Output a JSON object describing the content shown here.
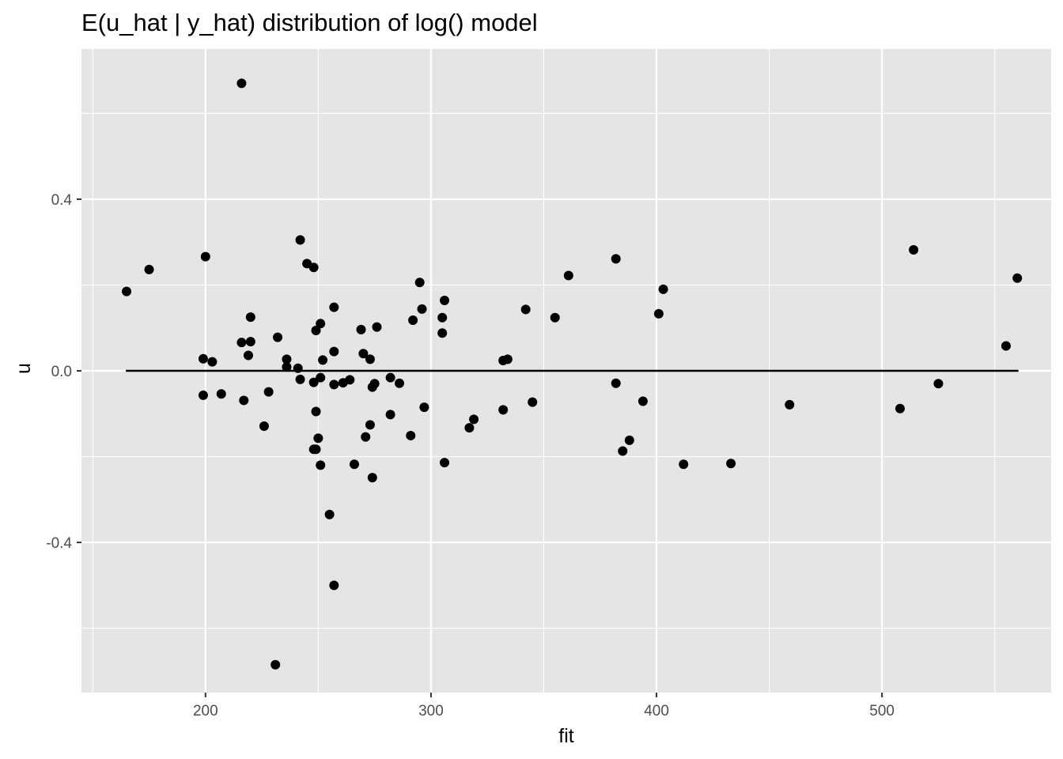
{
  "chart_data": {
    "type": "scatter",
    "title": "E(u_hat | y_hat) distribution of log() model",
    "xlabel": "fit",
    "ylabel": "u",
    "xlim": [
      145,
      575
    ],
    "ylim": [
      -0.75,
      0.75
    ],
    "x_ticks": [
      200,
      300,
      400,
      500
    ],
    "x_minor_ticks": [
      150,
      250,
      350,
      450,
      550
    ],
    "y_ticks": [
      -0.4,
      0.0,
      0.4
    ],
    "y_tick_labels": [
      "-0.4",
      "0.0",
      "0.4"
    ],
    "y_minor_ticks": [
      -0.6,
      -0.2,
      0.2,
      0.6
    ],
    "grid": true,
    "background": "#e5e5e5",
    "grid_color": "#ffffff",
    "point_color": "#000000",
    "reference_line": {
      "type": "hline",
      "y": 0.0,
      "x_from": 164.7,
      "x_to": 560.5,
      "color": "#000000"
    },
    "points": [
      {
        "x": 216,
        "y": 0.67
      },
      {
        "x": 231,
        "y": -0.685
      },
      {
        "x": 257,
        "y": -0.5
      },
      {
        "x": 255,
        "y": -0.335
      },
      {
        "x": 242,
        "y": 0.305
      },
      {
        "x": 245,
        "y": 0.25
      },
      {
        "x": 248,
        "y": 0.241
      },
      {
        "x": 200,
        "y": 0.266
      },
      {
        "x": 175,
        "y": 0.236
      },
      {
        "x": 165,
        "y": 0.185
      },
      {
        "x": 220,
        "y": 0.125
      },
      {
        "x": 216,
        "y": 0.066
      },
      {
        "x": 220,
        "y": 0.068
      },
      {
        "x": 219,
        "y": 0.036
      },
      {
        "x": 199,
        "y": 0.028
      },
      {
        "x": 203,
        "y": 0.021
      },
      {
        "x": 199,
        "y": -0.057
      },
      {
        "x": 207,
        "y": -0.054
      },
      {
        "x": 217,
        "y": -0.069
      },
      {
        "x": 226,
        "y": -0.129
      },
      {
        "x": 228,
        "y": -0.049
      },
      {
        "x": 232,
        "y": 0.078
      },
      {
        "x": 236,
        "y": 0.027
      },
      {
        "x": 236,
        "y": 0.009
      },
      {
        "x": 241,
        "y": 0.006
      },
      {
        "x": 242,
        "y": -0.02
      },
      {
        "x": 249,
        "y": 0.094
      },
      {
        "x": 251,
        "y": 0.11
      },
      {
        "x": 257,
        "y": 0.148
      },
      {
        "x": 252,
        "y": 0.025
      },
      {
        "x": 257,
        "y": 0.045
      },
      {
        "x": 248,
        "y": -0.027
      },
      {
        "x": 251,
        "y": -0.016
      },
      {
        "x": 257,
        "y": -0.032
      },
      {
        "x": 249,
        "y": -0.095
      },
      {
        "x": 250,
        "y": -0.157
      },
      {
        "x": 249,
        "y": -0.183
      },
      {
        "x": 248,
        "y": -0.183
      },
      {
        "x": 251,
        "y": -0.22
      },
      {
        "x": 261,
        "y": -0.028
      },
      {
        "x": 264,
        "y": -0.021
      },
      {
        "x": 266,
        "y": -0.218
      },
      {
        "x": 269,
        "y": 0.096
      },
      {
        "x": 270,
        "y": 0.04
      },
      {
        "x": 273,
        "y": 0.027
      },
      {
        "x": 274,
        "y": -0.038
      },
      {
        "x": 275,
        "y": -0.03
      },
      {
        "x": 276,
        "y": 0.102
      },
      {
        "x": 271,
        "y": -0.154
      },
      {
        "x": 273,
        "y": -0.126
      },
      {
        "x": 274,
        "y": -0.249
      },
      {
        "x": 282,
        "y": -0.016
      },
      {
        "x": 286,
        "y": -0.029
      },
      {
        "x": 282,
        "y": -0.102
      },
      {
        "x": 291,
        "y": -0.151
      },
      {
        "x": 292,
        "y": 0.118
      },
      {
        "x": 295,
        "y": 0.206
      },
      {
        "x": 296,
        "y": 0.144
      },
      {
        "x": 297,
        "y": -0.085
      },
      {
        "x": 305,
        "y": 0.088
      },
      {
        "x": 305,
        "y": 0.124
      },
      {
        "x": 306,
        "y": 0.164
      },
      {
        "x": 306,
        "y": -0.214
      },
      {
        "x": 317,
        "y": -0.133
      },
      {
        "x": 319,
        "y": -0.113
      },
      {
        "x": 332,
        "y": 0.024
      },
      {
        "x": 334,
        "y": 0.027
      },
      {
        "x": 332,
        "y": -0.091
      },
      {
        "x": 342,
        "y": 0.143
      },
      {
        "x": 345,
        "y": -0.073
      },
      {
        "x": 355,
        "y": 0.124
      },
      {
        "x": 361,
        "y": 0.222
      },
      {
        "x": 382,
        "y": 0.261
      },
      {
        "x": 382,
        "y": -0.029
      },
      {
        "x": 385,
        "y": -0.187
      },
      {
        "x": 388,
        "y": -0.162
      },
      {
        "x": 394,
        "y": -0.071
      },
      {
        "x": 401,
        "y": 0.133
      },
      {
        "x": 403,
        "y": 0.19
      },
      {
        "x": 412,
        "y": -0.218
      },
      {
        "x": 433,
        "y": -0.216
      },
      {
        "x": 459,
        "y": -0.079
      },
      {
        "x": 508,
        "y": -0.088
      },
      {
        "x": 514,
        "y": 0.282
      },
      {
        "x": 525,
        "y": -0.03
      },
      {
        "x": 555,
        "y": 0.058
      },
      {
        "x": 560,
        "y": 0.216
      }
    ]
  }
}
